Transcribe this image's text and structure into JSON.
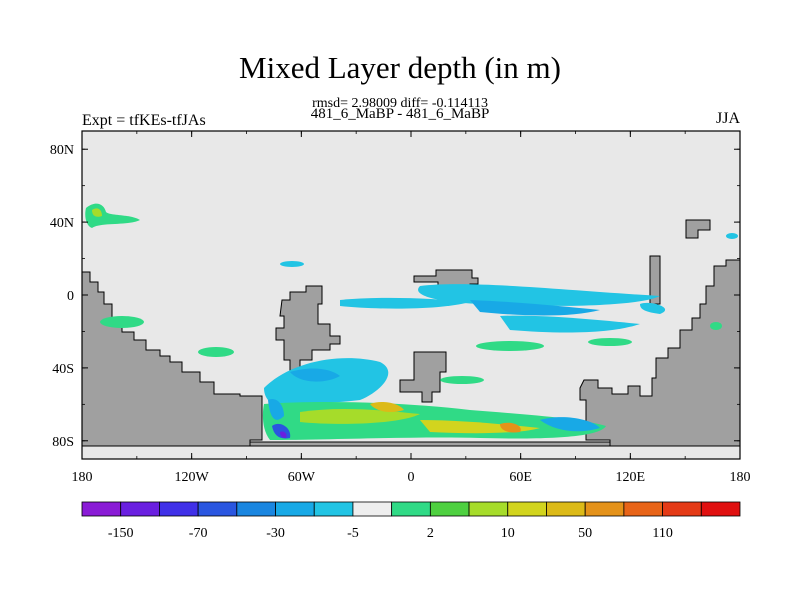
{
  "chart_data": {
    "type": "heatmap",
    "title": "Mixed Layer depth (in m)",
    "stats": "rmsd= 2.98009 diff= -0.114113",
    "subtitle": "481_6_MaBP - 481_6_MaBP",
    "left_label": "Expt = tfKEs-tfJAs",
    "right_label": "JJA",
    "x_ticks": [
      "180",
      "120W",
      "60W",
      "0",
      "60E",
      "120E",
      "180"
    ],
    "y_ticks": [
      "80N",
      "40N",
      "0",
      "40S",
      "80S"
    ],
    "x_range": [
      -180,
      180
    ],
    "y_range": [
      -90,
      90
    ],
    "grid": false,
    "colors": {
      "land": "#a0a0a0",
      "ocean_neutral": "#e8e8e8"
    },
    "colorbar": {
      "labels": [
        "-150",
        "-70",
        "-30",
        "-5",
        "2",
        "10",
        "50",
        "110"
      ],
      "colors": [
        "#8a1bd6",
        "#6a1fe0",
        "#4030e8",
        "#2a56e0",
        "#1a86e0",
        "#18a9e6",
        "#22c4e4",
        "#eeeeee",
        "#30da86",
        "#4ed040",
        "#a6dc2a",
        "#d2d41e",
        "#dcba18",
        "#e4921a",
        "#e86418",
        "#e43a16",
        "#e01010"
      ]
    }
  }
}
